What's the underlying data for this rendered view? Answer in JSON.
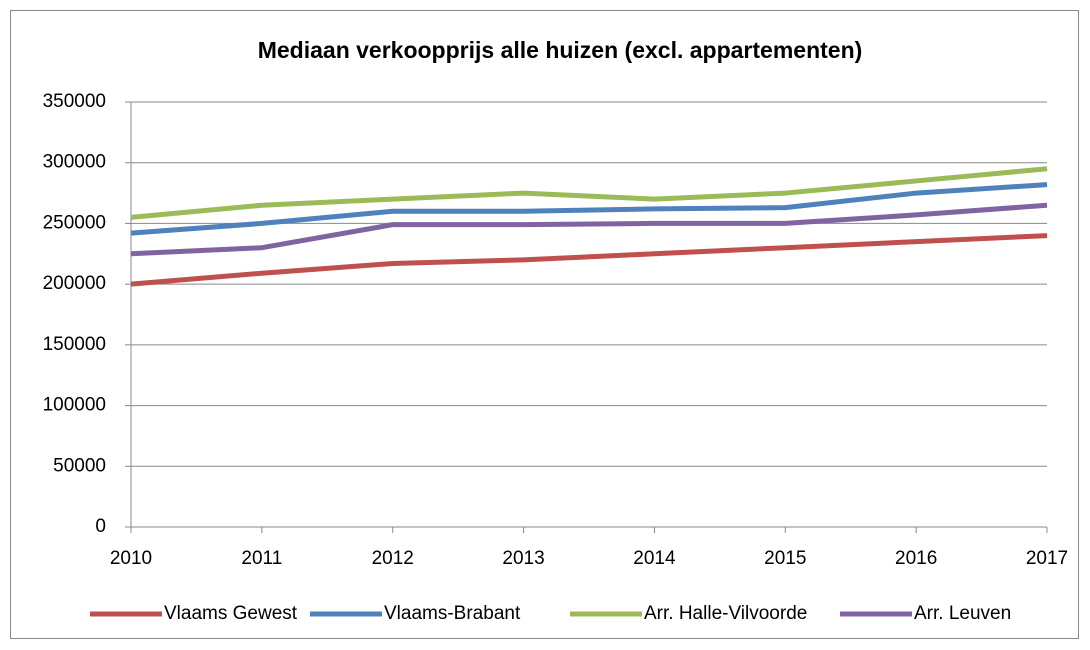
{
  "chart_data": {
    "type": "line",
    "title": "Mediaan verkoopprijs alle huizen (excl. appartementen)",
    "categories": [
      "2010",
      "2011",
      "2012",
      "2013",
      "2014",
      "2015",
      "2016",
      "2017"
    ],
    "series": [
      {
        "name": "Vlaams Gewest",
        "color": "#c0504d",
        "values": [
          200000,
          209000,
          217000,
          220000,
          225000,
          230000,
          235000,
          240000
        ]
      },
      {
        "name": "Vlaams-Brabant",
        "color": "#4f81bd",
        "values": [
          242000,
          250000,
          260000,
          260000,
          262000,
          263000,
          275000,
          282000
        ]
      },
      {
        "name": "Arr. Halle-Vilvoorde",
        "color": "#9bbb59",
        "values": [
          255000,
          265000,
          270000,
          275000,
          270000,
          275000,
          285000,
          295000
        ]
      },
      {
        "name": "Arr. Leuven",
        "color": "#8064a2",
        "values": [
          225000,
          230000,
          249000,
          249000,
          250000,
          250000,
          257000,
          265000
        ]
      }
    ],
    "ylim": [
      0,
      350000
    ],
    "yticks": [
      0,
      50000,
      100000,
      150000,
      200000,
      250000,
      300000,
      350000
    ],
    "grid": true,
    "legend": "bottom"
  }
}
